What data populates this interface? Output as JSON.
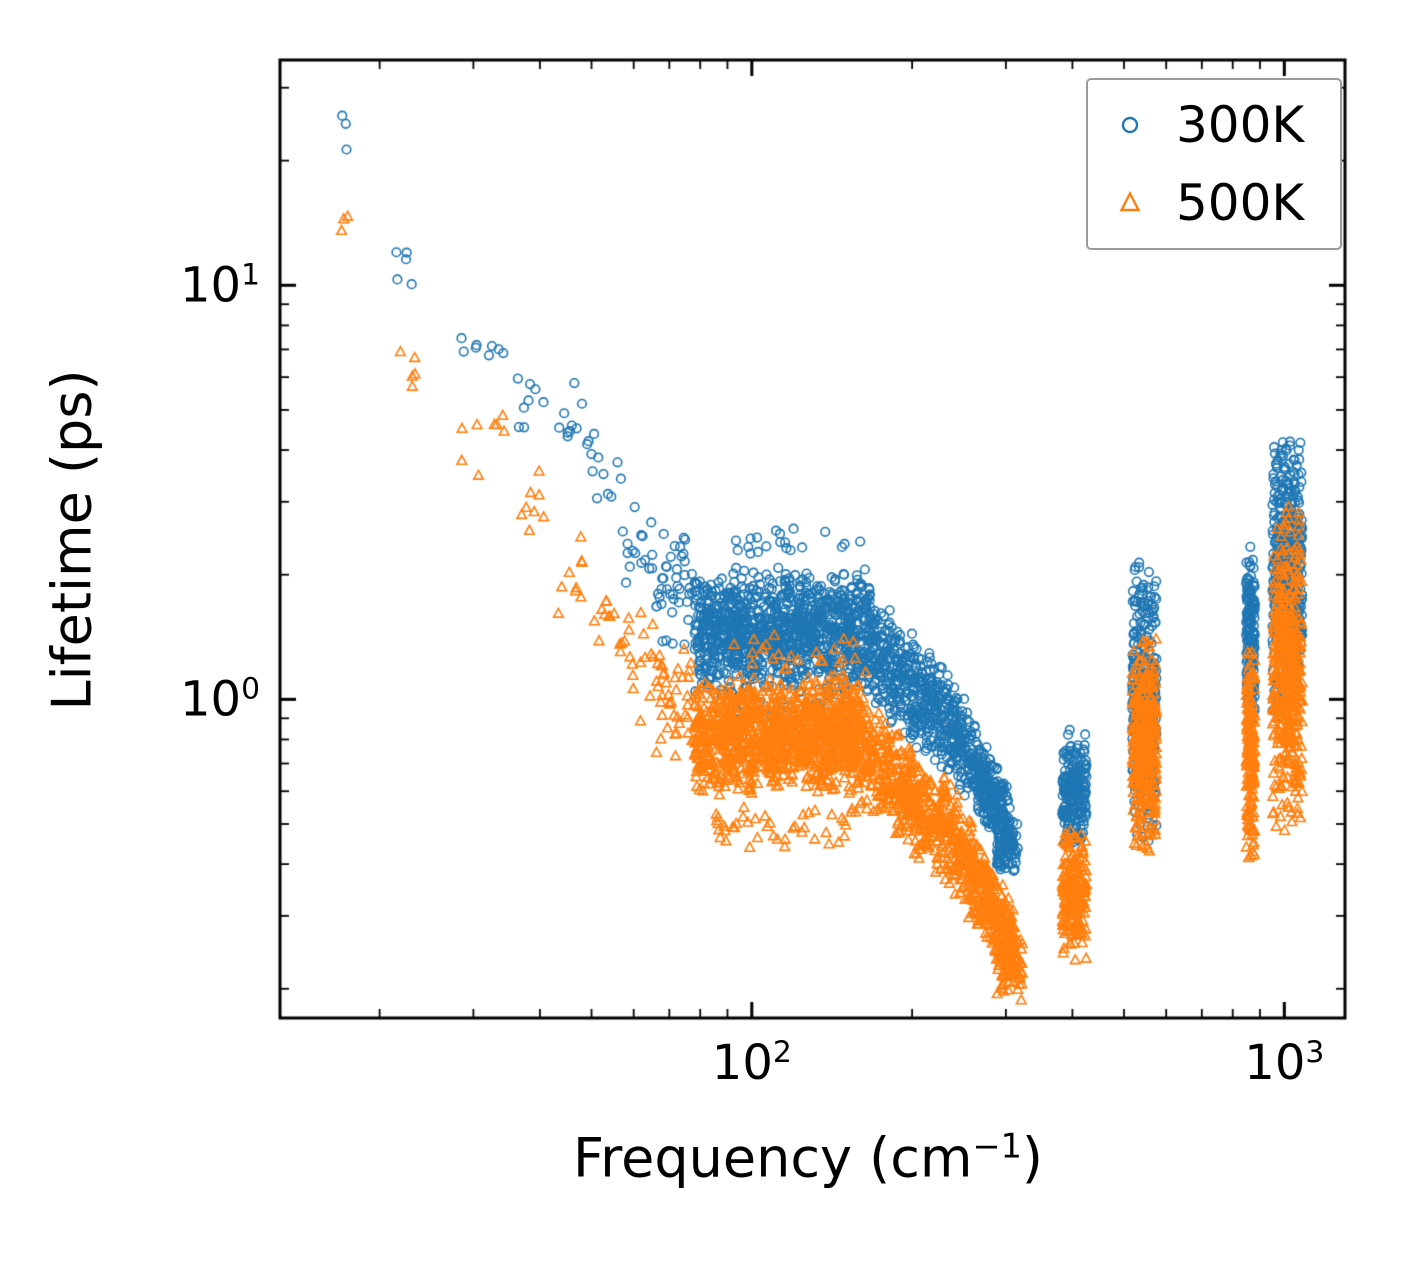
{
  "figure": {
    "background": "#ffffff",
    "axis_color": "#000000"
  },
  "axes": {
    "x": {
      "label_prefix": "Frequency (cm",
      "label_sup": "−1",
      "label_suffix": ")",
      "scale": "log",
      "min": 13,
      "max": 1300,
      "major_ticks": [
        100,
        1000
      ],
      "minor_ticks": [
        20,
        30,
        40,
        50,
        60,
        70,
        80,
        90,
        200,
        300,
        400,
        500,
        600,
        700,
        800,
        900
      ],
      "tick_labels": [
        {
          "base": "10",
          "exp": "2",
          "value": 100
        },
        {
          "base": "10",
          "exp": "3",
          "value": 1000
        }
      ]
    },
    "y": {
      "label": "Lifetime (ps)",
      "scale": "log",
      "min": 0.17,
      "max": 35,
      "major_ticks": [
        1,
        10
      ],
      "minor_ticks": [
        0.2,
        0.3,
        0.4,
        0.5,
        0.6,
        0.7,
        0.8,
        0.9,
        2,
        3,
        4,
        5,
        6,
        7,
        8,
        9,
        20,
        30
      ],
      "tick_labels": [
        {
          "base": "10",
          "exp": "0",
          "value": 1
        },
        {
          "base": "10",
          "exp": "1",
          "value": 10
        }
      ]
    }
  },
  "legend": {
    "items": [
      {
        "label": "300K",
        "marker": "circle",
        "color": "#1f77b4"
      },
      {
        "label": "500K",
        "marker": "triangle",
        "color": "#ff7f0e"
      }
    ]
  },
  "chart_data": {
    "type": "scatter",
    "title": "",
    "xlabel": "Frequency (cm^-1)",
    "ylabel": "Lifetime (ps)",
    "xscale": "log",
    "yscale": "log",
    "xlim": [
      13,
      1300
    ],
    "ylim": [
      0.17,
      35
    ],
    "legend_position": "upper right",
    "grid": false,
    "description": "Phonon lifetime vs frequency at two temperatures; dense point clouds summarized as bands: x range (cm^-1), y envelope (ps) at band start (y0) and end (y1), n = point count.",
    "series": [
      {
        "name": "300K",
        "marker": "circle",
        "color": "#1f77b4",
        "bands": [
          {
            "x": [
              16.8,
              17.6
            ],
            "y0": [
              18,
              29
            ],
            "n": 3
          },
          {
            "x": [
              21.5,
              23.5
            ],
            "y0": [
              9,
              14
            ],
            "n": 5
          },
          {
            "x": [
              28,
              31
            ],
            "y0": [
              6.8,
              7.8
            ],
            "n": 4
          },
          {
            "x": [
              32,
              34.5
            ],
            "y0": [
              6.3,
              8.0
            ],
            "n": 4
          },
          {
            "x": [
              36,
              41
            ],
            "y0": [
              4.2,
              6.4
            ],
            "n": 8
          },
          {
            "x": [
              43,
              48
            ],
            "y0": [
              3.4,
              6.0
            ],
            "n": 9
          },
          {
            "x": [
              49,
              57
            ],
            "y0": [
              2.4,
              5.3
            ],
            "n": 12
          },
          {
            "x": [
              57,
              66
            ],
            "y0": [
              1.7,
              3.3
            ],
            "n": 16
          },
          {
            "x": [
              66,
              78
            ],
            "y0": [
              1.3,
              2.6
            ],
            "n": 40
          },
          {
            "x": [
              78,
              165
            ],
            "y0": [
              1.0,
              2.1
            ],
            "n": 1100
          },
          {
            "x": [
              88,
              160
            ],
            "y0": [
              2.1,
              2.7
            ],
            "n": 20
          },
          {
            "x": [
              85,
              160
            ],
            "y0": [
              0.85,
              1.06
            ],
            "n": 25
          },
          {
            "x": [
              165,
              240
            ],
            "y0": [
              0.95,
              1.9
            ],
            "y1": [
              0.62,
              1.15
            ],
            "n": 450
          },
          {
            "x": [
              240,
              305
            ],
            "y0": [
              0.62,
              1.15
            ],
            "y1": [
              0.4,
              0.62
            ],
            "n": 350
          },
          {
            "x": [
              288,
              316
            ],
            "y0": [
              0.36,
              0.52
            ],
            "n": 70
          },
          {
            "x": [
              383,
              425
            ],
            "y0": [
              0.43,
              0.85
            ],
            "n": 220
          },
          {
            "x": [
              518,
              575
            ],
            "y0": [
              0.43,
              2.3
            ],
            "n": 330
          },
          {
            "x": [
              848,
              880
            ],
            "y0": [
              0.85,
              2.4
            ],
            "n": 180
          },
          {
            "x": [
              950,
              1080
            ],
            "y0": [
              0.9,
              4.6
            ],
            "n": 450
          }
        ]
      },
      {
        "name": "500K",
        "marker": "triangle",
        "color": "#ff7f0e",
        "bands": [
          {
            "x": [
              16.8,
              17.6
            ],
            "y0": [
              11,
              17
            ],
            "n": 3
          },
          {
            "x": [
              21.5,
              23.5
            ],
            "y0": [
              5.3,
              7.6
            ],
            "n": 5
          },
          {
            "x": [
              28,
              31
            ],
            "y0": [
              3.4,
              4.7
            ],
            "n": 4
          },
          {
            "x": [
              32,
              34.5
            ],
            "y0": [
              4.2,
              5.0
            ],
            "n": 4
          },
          {
            "x": [
              36,
              41
            ],
            "y0": [
              2.3,
              3.7
            ],
            "n": 8
          },
          {
            "x": [
              43,
              48
            ],
            "y0": [
              1.5,
              2.7
            ],
            "n": 9
          },
          {
            "x": [
              49,
              57
            ],
            "y0": [
              1.2,
              2.2
            ],
            "n": 12
          },
          {
            "x": [
              57,
              66
            ],
            "y0": [
              0.85,
              1.7
            ],
            "n": 16
          },
          {
            "x": [
              66,
              78
            ],
            "y0": [
              0.7,
              1.4
            ],
            "n": 40
          },
          {
            "x": [
              78,
              160
            ],
            "y0": [
              0.58,
              1.15
            ],
            "n": 1100
          },
          {
            "x": [
              85,
              160
            ],
            "y0": [
              0.42,
              0.58
            ],
            "n": 45
          },
          {
            "x": [
              90,
              165
            ],
            "y0": [
              1.1,
              1.5
            ],
            "n": 25
          },
          {
            "x": [
              160,
              240
            ],
            "y0": [
              0.55,
              1.05
            ],
            "y1": [
              0.33,
              0.62
            ],
            "n": 450
          },
          {
            "x": [
              240,
              310
            ],
            "y0": [
              0.33,
              0.62
            ],
            "y1": [
              0.2,
              0.33
            ],
            "n": 350
          },
          {
            "x": [
              288,
              322
            ],
            "y0": [
              0.185,
              0.3
            ],
            "n": 90
          },
          {
            "x": [
              383,
              425
            ],
            "y0": [
              0.23,
              0.52
            ],
            "n": 220
          },
          {
            "x": [
              518,
              575
            ],
            "y0": [
              0.4,
              1.45
            ],
            "n": 330
          },
          {
            "x": [
              848,
              880
            ],
            "y0": [
              0.4,
              1.35
            ],
            "n": 180
          },
          {
            "x": [
              950,
              1080
            ],
            "y0": [
              0.45,
              3.0
            ],
            "n": 450
          }
        ]
      }
    ]
  }
}
